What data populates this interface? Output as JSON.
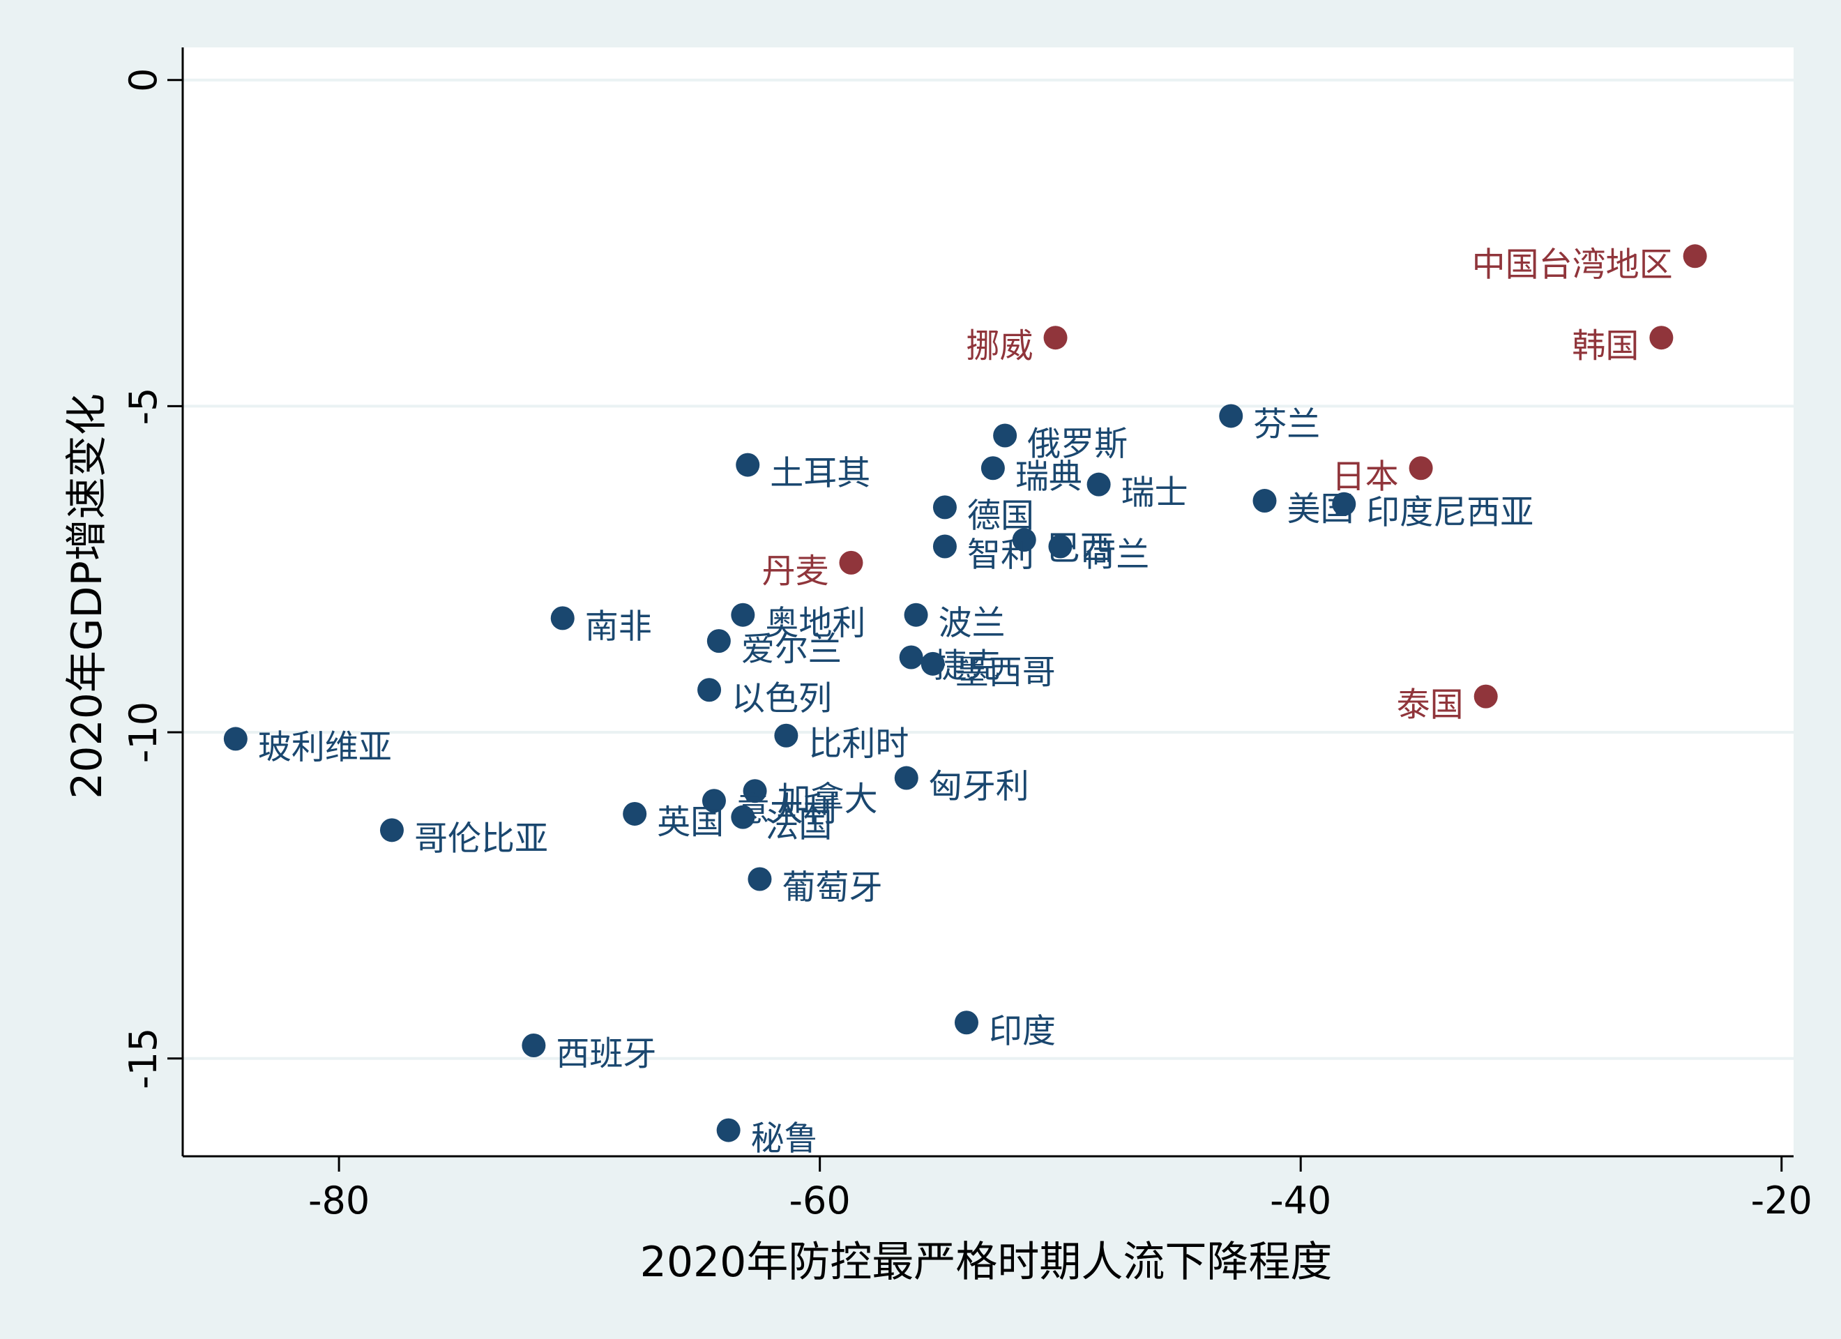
{
  "chart_data": {
    "type": "scatter",
    "xlabel": "2020年防控最严格时期人流下降程度",
    "ylabel": "2020年GDP增速变化",
    "xlim": [
      -86.5,
      -19.5
    ],
    "ylim": [
      -16.5,
      0.5
    ],
    "xticks": [
      -80,
      -60,
      -40,
      -20
    ],
    "yticks": [
      0,
      -5,
      -10,
      -15
    ],
    "grid": "horizontal",
    "colors": {
      "blue": "#1a476f",
      "red": "#90353b",
      "grid": "#eaf2f3",
      "background": "#eaf2f3",
      "plot_bg": "#ffffff"
    },
    "points": [
      {
        "label": "中国台湾地区",
        "x": -23.6,
        "y": -2.7,
        "group": "red"
      },
      {
        "label": "韩国",
        "x": -25.0,
        "y": -3.95,
        "group": "red"
      },
      {
        "label": "挪威",
        "x": -50.2,
        "y": -3.95,
        "group": "red"
      },
      {
        "label": "日本",
        "x": -35.0,
        "y": -5.95,
        "group": "red"
      },
      {
        "label": "丹麦",
        "x": -58.7,
        "y": -7.4,
        "group": "red"
      },
      {
        "label": "泰国",
        "x": -32.3,
        "y": -9.45,
        "group": "red"
      },
      {
        "label": "芬兰",
        "x": -42.9,
        "y": -5.15,
        "group": "blue"
      },
      {
        "label": "俄罗斯",
        "x": -52.3,
        "y": -5.45,
        "group": "blue"
      },
      {
        "label": "瑞典",
        "x": -52.8,
        "y": -5.95,
        "group": "blue"
      },
      {
        "label": "瑞士",
        "x": -48.4,
        "y": -6.2,
        "group": "blue"
      },
      {
        "label": "土耳其",
        "x": -63.0,
        "y": -5.9,
        "group": "blue"
      },
      {
        "label": "美国",
        "x": -41.5,
        "y": -6.45,
        "group": "blue"
      },
      {
        "label": "印度尼西亚",
        "x": -38.2,
        "y": -6.5,
        "group": "blue"
      },
      {
        "label": "德国",
        "x": -54.8,
        "y": -6.55,
        "group": "blue"
      },
      {
        "label": "巴西",
        "x": -51.5,
        "y": -7.05,
        "group": "blue"
      },
      {
        "label": "荷兰",
        "x": -50.0,
        "y": -7.15,
        "group": "blue"
      },
      {
        "label": "智利",
        "x": -54.8,
        "y": -7.15,
        "group": "blue"
      },
      {
        "label": "南非",
        "x": -70.7,
        "y": -8.25,
        "group": "blue"
      },
      {
        "label": "奥地利",
        "x": -63.2,
        "y": -8.2,
        "group": "blue"
      },
      {
        "label": "波兰",
        "x": -56.0,
        "y": -8.2,
        "group": "blue"
      },
      {
        "label": "爱尔兰",
        "x": -64.2,
        "y": -8.6,
        "group": "blue"
      },
      {
        "label": "捷克",
        "x": -56.2,
        "y": -8.85,
        "group": "blue"
      },
      {
        "label": "墨西哥",
        "x": -55.3,
        "y": -8.95,
        "group": "blue"
      },
      {
        "label": "以色列",
        "x": -64.6,
        "y": -9.35,
        "group": "blue"
      },
      {
        "label": "比利时",
        "x": -61.4,
        "y": -10.05,
        "group": "blue"
      },
      {
        "label": "玻利维亚",
        "x": -84.3,
        "y": -10.1,
        "group": "blue"
      },
      {
        "label": "匈牙利",
        "x": -56.4,
        "y": -10.7,
        "group": "blue"
      },
      {
        "label": "加拿大",
        "x": -62.7,
        "y": -10.9,
        "group": "blue"
      },
      {
        "label": "意大利",
        "x": -64.4,
        "y": -11.05,
        "group": "blue"
      },
      {
        "label": "英国",
        "x": -67.7,
        "y": -11.25,
        "group": "blue"
      },
      {
        "label": "法国",
        "x": -63.2,
        "y": -11.3,
        "group": "blue"
      },
      {
        "label": "哥伦比亚",
        "x": -77.8,
        "y": -11.5,
        "group": "blue"
      },
      {
        "label": "葡萄牙",
        "x": -62.5,
        "y": -12.25,
        "group": "blue"
      },
      {
        "label": "印度",
        "x": -53.9,
        "y": -14.45,
        "group": "blue"
      },
      {
        "label": "西班牙",
        "x": -71.9,
        "y": -14.8,
        "group": "blue"
      },
      {
        "label": "秘鲁",
        "x": -63.8,
        "y": -16.1,
        "group": "blue"
      }
    ]
  }
}
